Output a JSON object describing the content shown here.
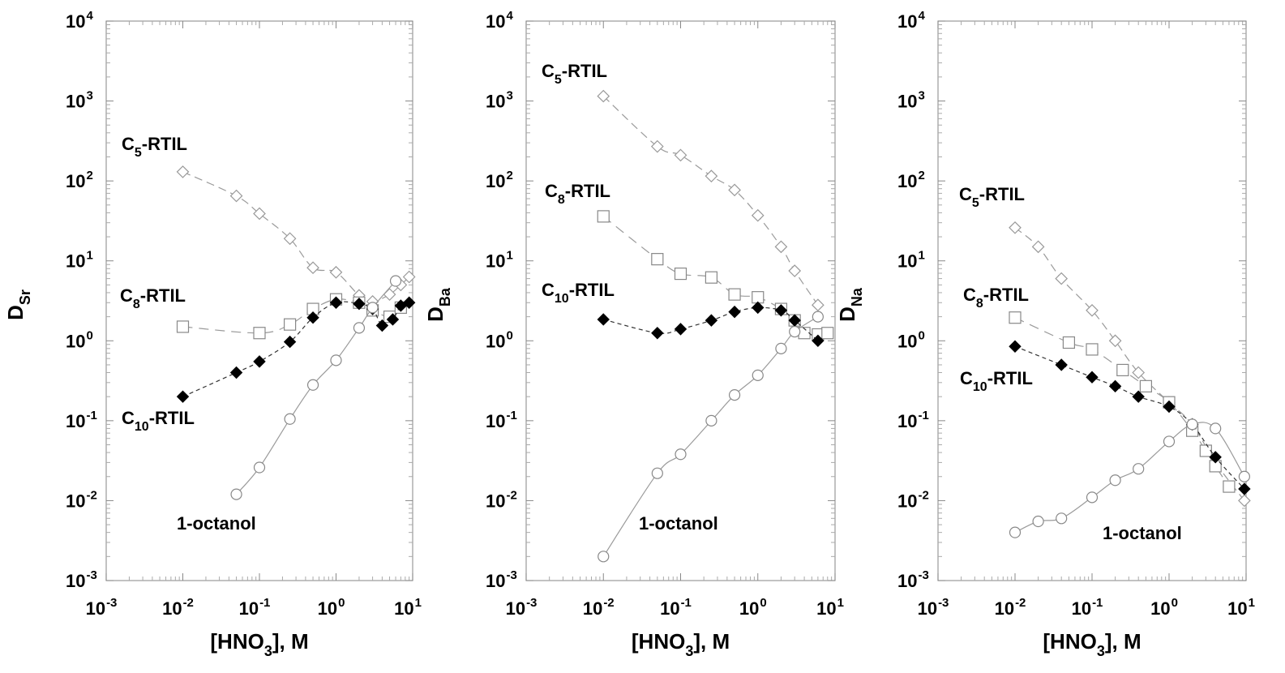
{
  "chart_data": [
    {
      "type": "scatter",
      "panel": "Sr",
      "xscale": "log",
      "yscale": "log",
      "xlim": [
        0.001,
        10
      ],
      "ylim": [
        0.001,
        10000
      ],
      "xlabel": {
        "pre": "[HNO",
        "sub": "3",
        "post": "], M"
      },
      "ylabel": {
        "main": "D",
        "sub": "Sr"
      },
      "x_tick_exponents": [
        "-3",
        "-2",
        "-1",
        "0",
        "1"
      ],
      "y_tick_exponents": [
        "-3",
        "-2",
        "-1",
        "0",
        "1",
        "2",
        "3",
        "4"
      ],
      "series": [
        {
          "name": "C5-RTIL",
          "label": {
            "pre": "C",
            "sub": "5",
            "post": "-RTIL"
          },
          "marker": "diamond-open",
          "x": [
            0.01,
            0.05,
            0.1,
            0.25,
            0.5,
            1,
            2,
            3,
            5,
            7,
            9
          ],
          "y": [
            130,
            65,
            39,
            19,
            8.2,
            7.2,
            3.7,
            3.1,
            3.8,
            5.0,
            6.3
          ]
        },
        {
          "name": "C8-RTIL",
          "label": {
            "pre": "C",
            "sub": "8",
            "post": "-RTIL"
          },
          "marker": "square-open",
          "x": [
            0.01,
            0.1,
            0.25,
            0.5,
            1,
            2,
            3,
            5,
            7
          ],
          "y": [
            1.5,
            1.25,
            1.6,
            2.5,
            3.3,
            3.0,
            2.4,
            2.0,
            2.6
          ]
        },
        {
          "name": "C10-RTIL",
          "label": {
            "pre": "C",
            "sub": "10",
            "post": "-RTIL"
          },
          "marker": "diamond-filled",
          "x": [
            0.01,
            0.05,
            0.1,
            0.25,
            0.5,
            1,
            2,
            3,
            4,
            5.5,
            7,
            9
          ],
          "y": [
            0.2,
            0.4,
            0.55,
            0.97,
            1.95,
            3.0,
            2.9,
            2.5,
            1.55,
            1.85,
            2.75,
            3.0
          ]
        },
        {
          "name": "1-octanol",
          "label": {
            "pre": "1-octanol",
            "sub": "",
            "post": ""
          },
          "marker": "circle-open",
          "x": [
            0.05,
            0.1,
            0.25,
            0.5,
            1,
            2,
            3,
            6
          ],
          "y": [
            0.012,
            0.026,
            0.105,
            0.28,
            0.57,
            1.45,
            2.6,
            5.6
          ]
        }
      ]
    },
    {
      "type": "scatter",
      "panel": "Ba",
      "xscale": "log",
      "yscale": "log",
      "xlim": [
        0.001,
        10
      ],
      "ylim": [
        0.001,
        10000
      ],
      "xlabel": {
        "pre": "[HNO",
        "sub": "3",
        "post": "], M"
      },
      "ylabel": {
        "main": "D",
        "sub": "Ba"
      },
      "x_tick_exponents": [
        "-3",
        "-2",
        "-1",
        "0",
        "1"
      ],
      "y_tick_exponents": [
        "-3",
        "-2",
        "-1",
        "0",
        "1",
        "2",
        "3",
        "4"
      ],
      "series": [
        {
          "name": "C5-RTIL",
          "label": {
            "pre": "C",
            "sub": "5",
            "post": "-RTIL"
          },
          "marker": "diamond-open",
          "x": [
            0.01,
            0.05,
            0.1,
            0.25,
            0.5,
            1,
            2,
            3,
            6
          ],
          "y": [
            1150,
            270,
            210,
            115,
            77,
            37,
            15,
            7.5,
            2.8
          ]
        },
        {
          "name": "C8-RTIL",
          "label": {
            "pre": "C",
            "sub": "8",
            "post": "-RTIL"
          },
          "marker": "square-open",
          "x": [
            0.01,
            0.05,
            0.1,
            0.25,
            0.5,
            1,
            2,
            3,
            4,
            6,
            8
          ],
          "y": [
            36,
            10.5,
            6.9,
            6.2,
            3.8,
            3.5,
            2.5,
            1.8,
            1.25,
            1.2,
            1.25
          ]
        },
        {
          "name": "C10-RTIL",
          "label": {
            "pre": "C",
            "sub": "10",
            "post": "-RTIL"
          },
          "marker": "diamond-filled",
          "x": [
            0.01,
            0.05,
            0.1,
            0.25,
            0.5,
            1,
            2,
            3,
            6
          ],
          "y": [
            1.85,
            1.25,
            1.4,
            1.8,
            2.3,
            2.6,
            2.4,
            1.8,
            1.0
          ]
        },
        {
          "name": "1-octanol",
          "label": {
            "pre": "1-octanol",
            "sub": "",
            "post": ""
          },
          "marker": "circle-open",
          "x": [
            0.01,
            0.05,
            0.1,
            0.25,
            0.5,
            1,
            2,
            3,
            6
          ],
          "y": [
            0.002,
            0.022,
            0.038,
            0.1,
            0.21,
            0.37,
            0.8,
            1.3,
            2.0
          ]
        }
      ]
    },
    {
      "type": "scatter",
      "panel": "Na",
      "xscale": "log",
      "yscale": "log",
      "xlim": [
        0.001,
        10
      ],
      "ylim": [
        0.001,
        10000
      ],
      "xlabel": {
        "pre": "[HNO",
        "sub": "3",
        "post": "], M"
      },
      "ylabel": {
        "main": "D",
        "sub": "Na"
      },
      "x_tick_exponents": [
        "-3",
        "-2",
        "-1",
        "0",
        "1"
      ],
      "y_tick_exponents": [
        "-3",
        "-2",
        "-1",
        "0",
        "1",
        "2",
        "3",
        "4"
      ],
      "series": [
        {
          "name": "C5-RTIL",
          "label": {
            "pre": "C",
            "sub": "5",
            "post": "-RTIL"
          },
          "marker": "diamond-open",
          "x": [
            0.01,
            0.02,
            0.04,
            0.1,
            0.2,
            0.4,
            1,
            2,
            4,
            9.5
          ],
          "y": [
            26,
            15,
            6,
            2.4,
            1.0,
            0.4,
            0.17,
            0.09,
            0.03,
            0.01
          ]
        },
        {
          "name": "C8-RTIL",
          "label": {
            "pre": "C",
            "sub": "8",
            "post": "-RTIL"
          },
          "marker": "square-open",
          "x": [
            0.01,
            0.05,
            0.1,
            0.25,
            0.5,
            1,
            2,
            3,
            4,
            6
          ],
          "y": [
            1.95,
            0.95,
            0.78,
            0.43,
            0.27,
            0.17,
            0.075,
            0.042,
            0.027,
            0.015
          ]
        },
        {
          "name": "C10-RTIL",
          "label": {
            "pre": "C",
            "sub": "10",
            "post": "-RTIL"
          },
          "marker": "diamond-filled",
          "x": [
            0.01,
            0.04,
            0.1,
            0.2,
            0.4,
            1,
            2,
            4,
            9.5
          ],
          "y": [
            0.85,
            0.5,
            0.35,
            0.27,
            0.2,
            0.15,
            0.09,
            0.035,
            0.014
          ]
        },
        {
          "name": "1-octanol",
          "label": {
            "pre": "1-octanol",
            "sub": "",
            "post": ""
          },
          "marker": "circle-open",
          "x": [
            0.01,
            0.02,
            0.04,
            0.1,
            0.2,
            0.4,
            1,
            2,
            4,
            9.5
          ],
          "y": [
            0.004,
            0.0055,
            0.006,
            0.011,
            0.018,
            0.025,
            0.055,
            0.09,
            0.08,
            0.02
          ]
        }
      ]
    }
  ]
}
